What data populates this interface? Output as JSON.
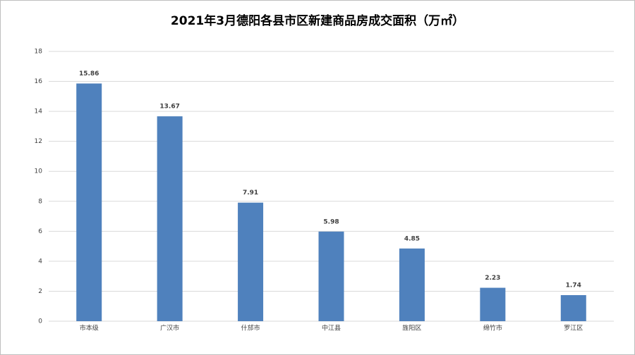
{
  "chart_data": {
    "type": "bar",
    "title": "2021年3月德阳各县市区新建商品房成交面积（万㎡）",
    "categories": [
      "市本级",
      "广汉市",
      "什邡市",
      "中江县",
      "旌阳区",
      "绵竹市",
      "罗江区"
    ],
    "values": [
      15.86,
      13.67,
      7.91,
      5.98,
      4.85,
      2.23,
      1.74
    ],
    "color": "#4f81bd",
    "ylim": [
      0,
      18
    ],
    "yticks": [
      0,
      2,
      4,
      6,
      8,
      10,
      12,
      14,
      16,
      18
    ],
    "grid": true
  }
}
